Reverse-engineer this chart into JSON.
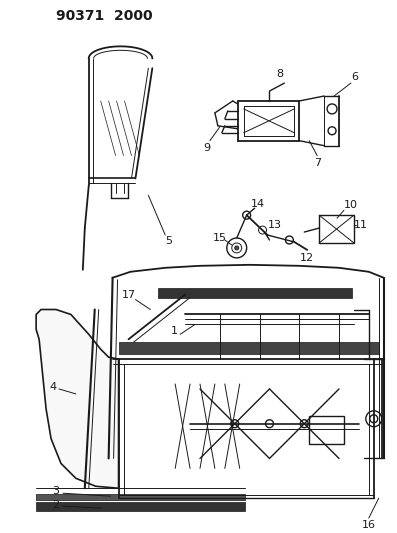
{
  "title": "90371  2000",
  "bg_color": "#ffffff",
  "line_color": "#1a1a1a",
  "figsize": [
    3.97,
    5.33
  ],
  "dpi": 100,
  "title_fontsize": 10,
  "label_fontsize": 8
}
